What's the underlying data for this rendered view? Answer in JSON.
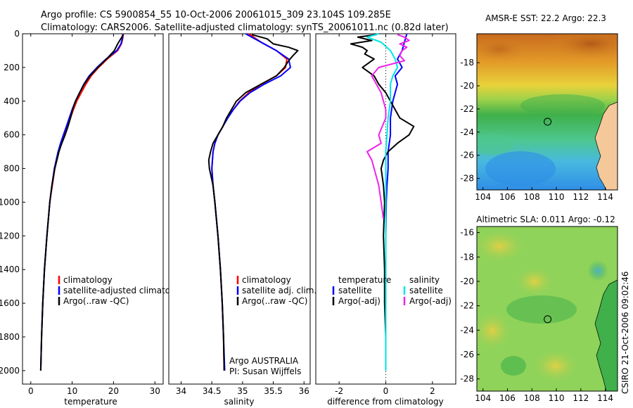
{
  "title_line1": "Argo profile: CS 5900854_55 10-Oct-2006 20061015_309 23.104S 109.285E",
  "title_line2": "Climatology: CARS2006. Satellite-adjusted climatology: synTS_20061011.nc (0.82d later)",
  "credit": "CSIRO 21-Oct-2006 09:02:46",
  "colors": {
    "clim": "#ff0000",
    "sat": "#0000ff",
    "argo": "#000000",
    "sal_sat": "#00e5e5",
    "sal_argo": "#ee22ee"
  },
  "chart_data": [
    {
      "id": "temperature",
      "type": "line",
      "xlabel": "temperature",
      "ylabel": "",
      "xlim": [
        -2,
        32
      ],
      "ylim": [
        2080,
        0
      ],
      "xticks": [
        0,
        10,
        20,
        30
      ],
      "yticks": [
        0,
        200,
        400,
        600,
        800,
        1000,
        1200,
        1400,
        1600,
        1800,
        2000
      ],
      "legend": [
        "climatology",
        "satellite-adjusted climatology",
        "Argo(..raw -QC)"
      ],
      "legend_truncated": "satellite-adjusted climatolog",
      "series": [
        {
          "name": "climatology",
          "color": "clim",
          "depth": [
            0,
            30,
            60,
            100,
            150,
            200,
            250,
            300,
            350,
            400,
            450,
            500,
            550,
            600,
            650,
            700,
            800,
            900,
            1000,
            1200,
            1400,
            1600,
            1800,
            2000
          ],
          "values": [
            22.4,
            22.2,
            21.9,
            21.0,
            18.5,
            16.4,
            14.6,
            13.3,
            12.2,
            11.1,
            10.3,
            9.6,
            8.9,
            8.1,
            7.4,
            6.8,
            5.8,
            5.2,
            4.6,
            3.9,
            3.3,
            2.9,
            2.6,
            2.4
          ]
        },
        {
          "name": "satellite-adjusted climatology",
          "color": "sat",
          "depth": [
            0,
            30,
            60,
            100,
            150,
            200,
            250,
            300,
            350,
            400,
            450,
            500,
            550,
            600,
            650,
            700,
            800,
            900,
            1000,
            1200,
            1400,
            1600,
            1800,
            2000
          ],
          "values": [
            22.3,
            22.1,
            21.8,
            20.8,
            18.2,
            16.0,
            14.1,
            12.8,
            11.8,
            10.8,
            10.0,
            9.3,
            8.6,
            7.9,
            7.2,
            6.6,
            5.7,
            5.1,
            4.6,
            3.9,
            3.3,
            2.9,
            2.6,
            2.4
          ]
        },
        {
          "name": "Argo(..raw -QC)",
          "color": "argo",
          "depth": [
            5,
            20,
            40,
            60,
            80,
            100,
            150,
            200,
            250,
            300,
            350,
            400,
            450,
            500,
            550,
            600,
            650,
            700,
            800,
            900,
            1000,
            1200,
            1400,
            1600,
            1800,
            2000
          ],
          "values": [
            22.3,
            22.0,
            21.5,
            21.0,
            20.6,
            20.2,
            18.3,
            16.2,
            14.3,
            12.9,
            11.8,
            10.8,
            10.1,
            9.6,
            9.0,
            8.3,
            7.5,
            6.8,
            5.8,
            5.1,
            4.6,
            3.9,
            3.3,
            2.9,
            2.6,
            2.4
          ]
        }
      ]
    },
    {
      "id": "salinity",
      "type": "line",
      "xlabel": "salinity",
      "xlim": [
        33.8,
        36.1
      ],
      "ylim": [
        2080,
        0
      ],
      "xticks": [
        34,
        34.5,
        35,
        35.5,
        36
      ],
      "legend": [
        "climatology",
        "satellite adj. clim.",
        "Argo(..raw -QC)"
      ],
      "annotation": [
        "Argo AUSTRALIA",
        "PI: Susan Wijffels"
      ],
      "series": [
        {
          "name": "climatology",
          "color": "clim",
          "depth": [
            0,
            50,
            100,
            150,
            200,
            250,
            300,
            350,
            400,
            450,
            500,
            550,
            600,
            650,
            700,
            800,
            900,
            1000,
            1200,
            1400,
            1600,
            1800,
            2000
          ],
          "values": [
            35.1,
            35.3,
            35.55,
            35.72,
            35.7,
            35.55,
            35.3,
            35.1,
            34.95,
            34.85,
            34.75,
            34.68,
            34.6,
            34.55,
            34.52,
            34.5,
            34.52,
            34.55,
            34.6,
            34.64,
            34.67,
            34.69,
            34.7
          ]
        },
        {
          "name": "satellite adj. clim.",
          "color": "sat",
          "depth": [
            0,
            50,
            100,
            150,
            200,
            250,
            300,
            350,
            400,
            450,
            500,
            550,
            600,
            650,
            700,
            800,
            900,
            1000,
            1200,
            1400,
            1600,
            1800,
            2000
          ],
          "values": [
            35.05,
            35.3,
            35.55,
            35.75,
            35.78,
            35.62,
            35.35,
            35.12,
            34.96,
            34.85,
            34.76,
            34.68,
            34.6,
            34.55,
            34.52,
            34.5,
            34.52,
            34.55,
            34.6,
            34.64,
            34.67,
            34.69,
            34.71
          ]
        },
        {
          "name": "Argo(..raw -QC)",
          "color": "argo",
          "depth": [
            5,
            30,
            60,
            80,
            100,
            130,
            160,
            200,
            250,
            300,
            350,
            400,
            450,
            500,
            550,
            600,
            650,
            700,
            750,
            800,
            900,
            1000,
            1200,
            1400,
            1600,
            1800,
            2000
          ],
          "values": [
            35.15,
            35.4,
            35.5,
            35.75,
            35.9,
            35.82,
            35.75,
            35.68,
            35.55,
            35.3,
            35.05,
            34.9,
            34.82,
            34.74,
            34.68,
            34.6,
            34.52,
            34.48,
            34.45,
            34.46,
            34.52,
            34.55,
            34.6,
            34.64,
            34.67,
            34.69,
            34.7
          ]
        }
      ]
    },
    {
      "id": "difference",
      "type": "line",
      "xlabel": "difference from climatology",
      "xlim": [
        -3.0,
        3.0
      ],
      "ylim": [
        2080,
        0
      ],
      "xticks": [
        -2,
        0,
        2
      ],
      "legend_temperature": {
        "heading": "temperature",
        "items": [
          "satellite",
          "Argo(-adj)"
        ]
      },
      "legend_salinity": {
        "heading": "salinity",
        "items": [
          "satellite",
          "Argo(-adj)"
        ]
      },
      "series": [
        {
          "name": "temperature satellite",
          "color": "sat",
          "depth": [
            0,
            50,
            100,
            150,
            200,
            250,
            300,
            400,
            500,
            600,
            700,
            800,
            900,
            1000,
            1200,
            1400,
            1600,
            1800,
            2000
          ],
          "values": [
            0.9,
            0.8,
            0.7,
            0.5,
            0.7,
            0.4,
            0.5,
            0.3,
            0.2,
            0.2,
            0.1,
            0.1,
            0.05,
            0.02,
            0.0,
            0.0,
            0.0,
            0.0,
            0.0
          ]
        },
        {
          "name": "temperature Argo(-adj)",
          "color": "argo",
          "depth": [
            5,
            20,
            40,
            60,
            80,
            100,
            120,
            150,
            200,
            250,
            300,
            350,
            400,
            450,
            500,
            550,
            600,
            650,
            700,
            750,
            800,
            900,
            1000,
            1200,
            1400,
            1600,
            1800,
            2000
          ],
          "values": [
            -0.4,
            -1.2,
            -0.6,
            -1.5,
            -1.0,
            -0.8,
            -0.9,
            -0.5,
            -1.0,
            -0.5,
            -0.3,
            0.0,
            0.2,
            0.4,
            0.6,
            1.2,
            1.0,
            0.5,
            0.1,
            -0.1,
            -0.2,
            -0.1,
            -0.05,
            -0.1,
            -0.05,
            -0.05,
            0.0,
            0.0
          ]
        },
        {
          "name": "salinity satellite",
          "color": "sal_sat",
          "depth": [
            0,
            20,
            50,
            100,
            150,
            200,
            250,
            300,
            400,
            500,
            600,
            700,
            800,
            900,
            1000,
            1200,
            1400,
            1600,
            1800,
            2000
          ],
          "values": [
            -0.3,
            -0.8,
            -0.2,
            0.2,
            0.4,
            0.5,
            0.3,
            0.2,
            0.2,
            0.1,
            0.05,
            0.0,
            0.0,
            0.0,
            0.0,
            0.0,
            0.0,
            0.0,
            0.0,
            0.0
          ]
        },
        {
          "name": "salinity Argo(-adj)",
          "color": "sal_argo",
          "depth": [
            5,
            20,
            40,
            60,
            80,
            100,
            130,
            160,
            200,
            250,
            300,
            350,
            400,
            450,
            500,
            600,
            650,
            700,
            750,
            800,
            900,
            1000,
            1100
          ],
          "values": [
            0.5,
            0.8,
            1.0,
            0.6,
            0.9,
            0.7,
            0.6,
            0.8,
            -0.3,
            -0.6,
            -0.4,
            -0.2,
            -0.1,
            0.0,
            0.0,
            -0.3,
            -0.2,
            -0.8,
            -0.6,
            -0.5,
            -0.3,
            -0.2,
            -0.1
          ]
        }
      ]
    },
    {
      "id": "sst_map",
      "type": "heatmap",
      "title": "AMSR-E SST: 22.2 Argo: 22.3",
      "xlim": [
        103.5,
        115
      ],
      "ylim": [
        -29,
        -15.5
      ],
      "xticks": [
        104,
        106,
        108,
        110,
        112,
        114
      ],
      "yticks": [
        -18,
        -20,
        -22,
        -24,
        -26,
        -28
      ],
      "marker": {
        "lon": 109.285,
        "lat": -23.104
      }
    },
    {
      "id": "sla_map",
      "type": "heatmap",
      "title": "Altimetric SLA: 0.011 Argo: -0.12",
      "xlim": [
        103.5,
        115
      ],
      "ylim": [
        -29,
        -15.5
      ],
      "xticks": [
        104,
        106,
        108,
        110,
        112,
        114
      ],
      "yticks": [
        -16,
        -18,
        -20,
        -22,
        -24,
        -26,
        -28
      ],
      "marker": {
        "lon": 109.285,
        "lat": -23.104
      }
    }
  ]
}
